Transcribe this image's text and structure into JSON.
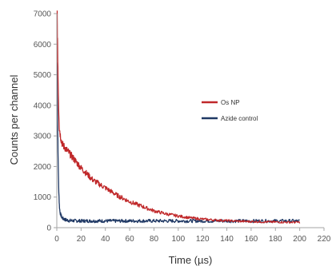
{
  "chart_data": {
    "type": "line",
    "title": "",
    "xlabel": "Time (µs)",
    "ylabel": "Counts per channel",
    "xlim": [
      0,
      220
    ],
    "ylim": [
      0,
      7000
    ],
    "x_ticks": [
      0,
      20,
      40,
      60,
      80,
      100,
      120,
      140,
      160,
      180,
      200,
      220
    ],
    "y_ticks": [
      0,
      1000,
      2000,
      3000,
      4000,
      5000,
      6000,
      7000
    ],
    "grid": false,
    "legend_position": "right",
    "series": [
      {
        "name": "Os NP",
        "color": "#c0282a",
        "x": [
          0.3,
          0.5,
          1,
          1.5,
          2,
          3,
          4,
          5,
          7,
          10,
          15,
          20,
          25,
          30,
          40,
          50,
          60,
          70,
          80,
          90,
          100,
          110,
          120,
          130,
          140,
          150,
          160,
          170,
          180,
          190,
          200
        ],
        "y": [
          7000,
          6300,
          5000,
          4000,
          3300,
          3000,
          2800,
          2700,
          2600,
          2450,
          2200,
          1950,
          1750,
          1550,
          1300,
          1050,
          850,
          700,
          550,
          450,
          380,
          320,
          280,
          250,
          230,
          210,
          200,
          190,
          185,
          180,
          175
        ]
      },
      {
        "name": "Azide control",
        "color": "#1f3864",
        "x": [
          0.3,
          0.5,
          1,
          1.5,
          2,
          2.5,
          3,
          4,
          5,
          7,
          10,
          20,
          40,
          60,
          80,
          100,
          120,
          140,
          160,
          180,
          200
        ],
        "y": [
          5400,
          4000,
          2500,
          1400,
          800,
          550,
          450,
          350,
          300,
          260,
          230,
          220,
          220,
          220,
          220,
          220,
          220,
          220,
          220,
          220,
          220
        ]
      }
    ]
  }
}
